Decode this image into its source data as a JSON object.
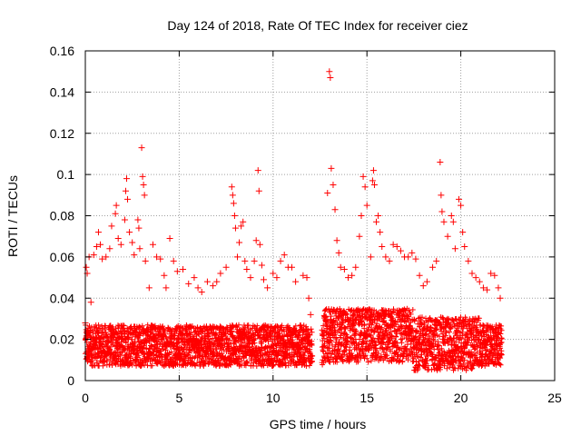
{
  "chart_data": {
    "type": "scatter",
    "title": "Day 124 of 2018, Rate Of TEC Index for receiver ciez",
    "xlabel": "GPS time / hours",
    "ylabel": "ROTI / TECUs",
    "xlim": [
      0,
      25
    ],
    "ylim": [
      0,
      0.16
    ],
    "x_ticks": [
      0,
      5,
      10,
      15,
      20,
      25
    ],
    "x_tick_labels": [
      "0",
      "5",
      "10",
      "15",
      "20",
      "25"
    ],
    "y_ticks": [
      0,
      0.02,
      0.04,
      0.06,
      0.08,
      0.1,
      0.12,
      0.14,
      0.16
    ],
    "y_tick_labels": [
      "0",
      "0.02",
      "0.04",
      "0.06",
      "0.08",
      "0.1",
      "0.12",
      "0.14",
      "0.16"
    ],
    "grid": true,
    "marker": "+",
    "color": "#ff0000",
    "legend": "none",
    "series": [
      {
        "name": "ROTI",
        "points": [
          [
            0.0,
            0.028
          ],
          [
            0.05,
            0.055
          ],
          [
            0.1,
            0.052
          ],
          [
            0.2,
            0.06
          ],
          [
            0.3,
            0.038
          ],
          [
            0.45,
            0.061
          ],
          [
            0.6,
            0.065
          ],
          [
            0.7,
            0.072
          ],
          [
            0.8,
            0.066
          ],
          [
            0.9,
            0.059
          ],
          [
            1.1,
            0.06
          ],
          [
            1.3,
            0.064
          ],
          [
            1.4,
            0.075
          ],
          [
            1.6,
            0.081
          ],
          [
            1.65,
            0.085
          ],
          [
            1.75,
            0.069
          ],
          [
            1.9,
            0.066
          ],
          [
            2.1,
            0.078
          ],
          [
            2.15,
            0.092
          ],
          [
            2.2,
            0.098
          ],
          [
            2.25,
            0.088
          ],
          [
            2.35,
            0.072
          ],
          [
            2.5,
            0.067
          ],
          [
            2.6,
            0.061
          ],
          [
            2.8,
            0.078
          ],
          [
            2.85,
            0.074
          ],
          [
            2.9,
            0.064
          ],
          [
            3.0,
            0.113
          ],
          [
            3.05,
            0.099
          ],
          [
            3.1,
            0.095
          ],
          [
            3.15,
            0.09
          ],
          [
            3.2,
            0.058
          ],
          [
            3.4,
            0.045
          ],
          [
            3.6,
            0.066
          ],
          [
            3.8,
            0.06
          ],
          [
            4.0,
            0.059
          ],
          [
            4.2,
            0.051
          ],
          [
            4.3,
            0.045
          ],
          [
            4.5,
            0.069
          ],
          [
            4.7,
            0.058
          ],
          [
            4.9,
            0.053
          ],
          [
            5.2,
            0.054
          ],
          [
            5.5,
            0.047
          ],
          [
            5.8,
            0.05
          ],
          [
            6.0,
            0.045
          ],
          [
            6.2,
            0.043
          ],
          [
            6.5,
            0.048
          ],
          [
            6.8,
            0.046
          ],
          [
            7.0,
            0.048
          ],
          [
            7.2,
            0.052
          ],
          [
            7.5,
            0.055
          ],
          [
            7.8,
            0.094
          ],
          [
            7.85,
            0.09
          ],
          [
            7.9,
            0.086
          ],
          [
            7.95,
            0.08
          ],
          [
            8.0,
            0.074
          ],
          [
            8.1,
            0.06
          ],
          [
            8.2,
            0.067
          ],
          [
            8.3,
            0.075
          ],
          [
            8.4,
            0.077
          ],
          [
            8.5,
            0.058
          ],
          [
            8.6,
            0.054
          ],
          [
            8.8,
            0.05
          ],
          [
            9.0,
            0.058
          ],
          [
            9.1,
            0.068
          ],
          [
            9.2,
            0.102
          ],
          [
            9.25,
            0.092
          ],
          [
            9.3,
            0.066
          ],
          [
            9.4,
            0.056
          ],
          [
            9.5,
            0.049
          ],
          [
            9.7,
            0.045
          ],
          [
            10.0,
            0.052
          ],
          [
            10.2,
            0.05
          ],
          [
            10.4,
            0.058
          ],
          [
            10.6,
            0.061
          ],
          [
            10.8,
            0.055
          ],
          [
            11.0,
            0.055
          ],
          [
            11.2,
            0.048
          ],
          [
            11.6,
            0.051
          ],
          [
            11.8,
            0.05
          ],
          [
            11.9,
            0.04
          ],
          [
            12.0,
            0.032
          ],
          [
            12.9,
            0.091
          ],
          [
            13.0,
            0.15
          ],
          [
            13.05,
            0.147
          ],
          [
            13.1,
            0.103
          ],
          [
            13.2,
            0.095
          ],
          [
            13.3,
            0.083
          ],
          [
            13.4,
            0.068
          ],
          [
            13.5,
            0.062
          ],
          [
            13.6,
            0.055
          ],
          [
            13.8,
            0.054
          ],
          [
            14.0,
            0.05
          ],
          [
            14.2,
            0.051
          ],
          [
            14.4,
            0.055
          ],
          [
            14.6,
            0.07
          ],
          [
            14.7,
            0.08
          ],
          [
            14.8,
            0.099
          ],
          [
            14.9,
            0.094
          ],
          [
            15.0,
            0.085
          ],
          [
            15.2,
            0.06
          ],
          [
            15.3,
            0.097
          ],
          [
            15.35,
            0.102
          ],
          [
            15.4,
            0.095
          ],
          [
            15.5,
            0.077
          ],
          [
            15.6,
            0.08
          ],
          [
            15.7,
            0.072
          ],
          [
            15.8,
            0.065
          ],
          [
            16.0,
            0.06
          ],
          [
            16.2,
            0.058
          ],
          [
            16.4,
            0.066
          ],
          [
            16.6,
            0.065
          ],
          [
            16.8,
            0.063
          ],
          [
            17.0,
            0.06
          ],
          [
            17.2,
            0.06
          ],
          [
            17.4,
            0.062
          ],
          [
            17.6,
            0.059
          ],
          [
            17.8,
            0.051
          ],
          [
            18.0,
            0.046
          ],
          [
            18.2,
            0.048
          ],
          [
            18.5,
            0.055
          ],
          [
            18.7,
            0.058
          ],
          [
            18.9,
            0.106
          ],
          [
            18.95,
            0.09
          ],
          [
            19.0,
            0.082
          ],
          [
            19.1,
            0.077
          ],
          [
            19.3,
            0.07
          ],
          [
            19.5,
            0.08
          ],
          [
            19.6,
            0.077
          ],
          [
            19.7,
            0.064
          ],
          [
            19.9,
            0.088
          ],
          [
            20.0,
            0.085
          ],
          [
            20.1,
            0.072
          ],
          [
            20.2,
            0.065
          ],
          [
            20.4,
            0.058
          ],
          [
            20.6,
            0.052
          ],
          [
            20.8,
            0.05
          ],
          [
            21.0,
            0.048
          ],
          [
            21.2,
            0.045
          ],
          [
            21.4,
            0.044
          ],
          [
            21.6,
            0.052
          ],
          [
            21.8,
            0.051
          ],
          [
            22.0,
            0.045
          ],
          [
            22.1,
            0.04
          ]
        ]
      }
    ]
  }
}
